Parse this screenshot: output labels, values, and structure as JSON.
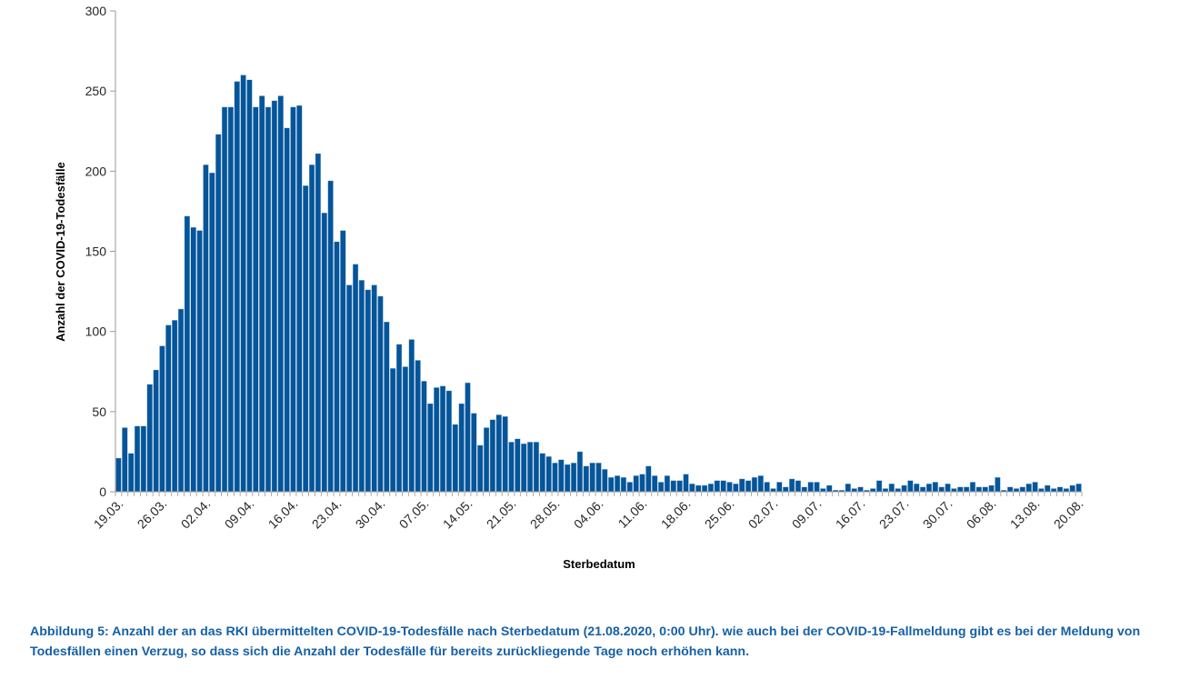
{
  "chart_data": {
    "type": "bar",
    "title": "",
    "xlabel": "Sterbedatum",
    "ylabel": "Anzahl der COVID-19-Todesfälle",
    "ylim": [
      0,
      300
    ],
    "yticks": [
      0,
      50,
      100,
      150,
      200,
      250,
      300
    ],
    "xtick_labels": [
      "19.03.",
      "26.03.",
      "02.04.",
      "09.04.",
      "16.04.",
      "23.04.",
      "30.04.",
      "07.05.",
      "14.05.",
      "21.05.",
      "28.05.",
      "04.06.",
      "11.06.",
      "18.06.",
      "25.06.",
      "02.07.",
      "09.07.",
      "16.07.",
      "23.07.",
      "30.07.",
      "06.08.",
      "13.08.",
      "20.08."
    ],
    "xtick_every": 7,
    "start_date": "19.03.",
    "end_date": "20.08.",
    "bar_color": "#04559a",
    "grid": false,
    "values": [
      21,
      40,
      24,
      41,
      41,
      67,
      76,
      91,
      104,
      107,
      114,
      172,
      165,
      163,
      204,
      199,
      223,
      240,
      240,
      256,
      260,
      257,
      240,
      247,
      240,
      244,
      247,
      227,
      240,
      241,
      191,
      204,
      211,
      174,
      194,
      156,
      163,
      129,
      142,
      132,
      126,
      129,
      122,
      106,
      77,
      92,
      78,
      95,
      82,
      69,
      55,
      65,
      66,
      63,
      42,
      55,
      68,
      49,
      29,
      40,
      45,
      48,
      47,
      31,
      33,
      30,
      31,
      31,
      24,
      22,
      18,
      20,
      17,
      18,
      25,
      16,
      18,
      18,
      14,
      9,
      10,
      9,
      6,
      10,
      11,
      16,
      10,
      6,
      10,
      7,
      7,
      11,
      5,
      4,
      4,
      5,
      7,
      7,
      6,
      5,
      8,
      7,
      9,
      10,
      6,
      2,
      6,
      3,
      8,
      7,
      3,
      6,
      6,
      2,
      4,
      1,
      1,
      5,
      2,
      3,
      1,
      2,
      7,
      2,
      5,
      2,
      4,
      7,
      5,
      3,
      5,
      6,
      3,
      5,
      2,
      3,
      3,
      6,
      3,
      3,
      4,
      9,
      1,
      3,
      2,
      3,
      5,
      6,
      2,
      4,
      2,
      3,
      2,
      4,
      5
    ]
  },
  "caption": "Abbildung 5: Anzahl der an das RKI übermittelten COVID-19-Todesfälle nach Sterbedatum (21.08.2020, 0:00 Uhr). wie auch bei der COVID-19-Fallmeldung gibt es bei der Meldung von Todesfällen einen Verzug, so dass sich die Anzahl der Todesfälle für bereits zurückliegende Tage noch erhöhen kann.",
  "caption_color": "#1560a6"
}
